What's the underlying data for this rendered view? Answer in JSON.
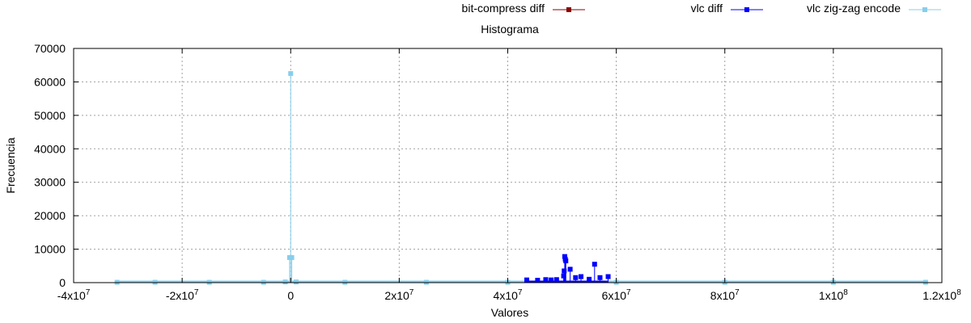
{
  "chart_data": {
    "type": "line",
    "title": "Histograma",
    "xlabel": "Valores",
    "ylabel": "Frecuencia",
    "xlim": [
      -40000000,
      120000000
    ],
    "ylim": [
      0,
      70000
    ],
    "grid": true,
    "legend_position": "top",
    "x_ticks": [
      {
        "value": -40000000,
        "mant": "-4x10",
        "exp": "7"
      },
      {
        "value": -20000000,
        "mant": "-2x10",
        "exp": "7"
      },
      {
        "value": 0,
        "mant": "0",
        "exp": ""
      },
      {
        "value": 20000000,
        "mant": "2x10",
        "exp": "7"
      },
      {
        "value": 40000000,
        "mant": "4x10",
        "exp": "7"
      },
      {
        "value": 60000000,
        "mant": "6x10",
        "exp": "7"
      },
      {
        "value": 80000000,
        "mant": "8x10",
        "exp": "7"
      },
      {
        "value": 100000000,
        "mant": "1x10",
        "exp": "8"
      },
      {
        "value": 120000000,
        "mant": "1.2x10",
        "exp": "8"
      }
    ],
    "y_ticks": [
      0,
      10000,
      20000,
      30000,
      40000,
      50000,
      60000,
      70000
    ],
    "series": [
      {
        "name": "bit-compress diff",
        "color": "#8b0000",
        "marker": "square",
        "x": [],
        "y": []
      },
      {
        "name": "vlc diff",
        "color": "#0000ff",
        "marker": "square",
        "x": [
          43500000,
          45500000,
          47000000,
          48000000,
          49000000,
          50300000,
          50400000,
          50500000,
          50600000,
          50700000,
          51500000,
          52500000,
          53500000,
          55000000,
          56000000,
          57000000,
          58500000
        ],
        "y": [
          800,
          700,
          900,
          800,
          900,
          2000,
          3500,
          7800,
          7000,
          6500,
          4000,
          1500,
          1800,
          1000,
          5500,
          1500,
          1800
        ]
      },
      {
        "name": "vlc zig-zag encode",
        "color": "#87ceeb",
        "marker": "square",
        "x": [
          -32000000,
          -25000000,
          -15000000,
          -5000000,
          -1000000,
          -200000,
          0,
          200000,
          1000000,
          10000000,
          25000000,
          40000000,
          60000000,
          80000000,
          100000000,
          117000000
        ],
        "y": [
          100,
          100,
          100,
          100,
          200,
          7500,
          62500,
          7500,
          200,
          100,
          100,
          100,
          100,
          100,
          100,
          100
        ]
      }
    ]
  }
}
